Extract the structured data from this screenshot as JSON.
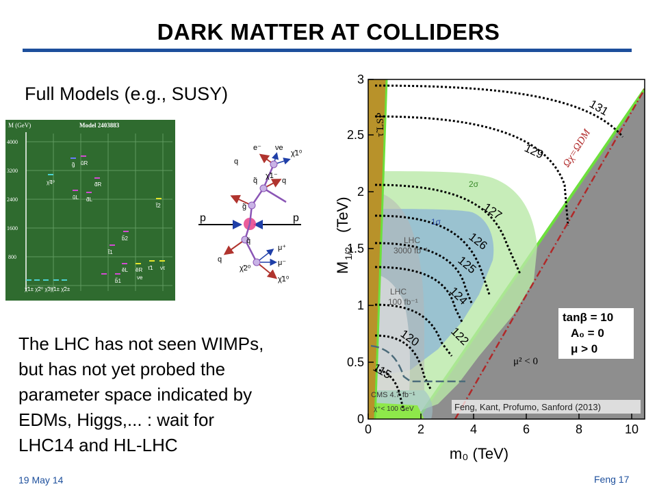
{
  "slide": {
    "title": "DARK MATTER AT COLLIDERS",
    "subtitle": "Full Models (e.g., SUSY)",
    "body_lines": [
      "The LHC has not seen WIMPs,",
      "but has not yet probed the",
      "parameter space indicated by",
      "EDMs, Higgs,... : wait for",
      "LHC14 and HL-LHC"
    ],
    "footer_date": "19 May 14",
    "footer_page": "Feng  17",
    "accent_color": "#1d4f9c"
  },
  "spectrum": {
    "axis_label": "M (GeV)",
    "model_label": "Model 2403883",
    "ticks": [
      "4000",
      "3200",
      "2400",
      "1600",
      "800"
    ],
    "particles": [
      "g̃",
      "ũR",
      "χ̃4⁰",
      "d̃R",
      "ũL",
      "d̃L",
      "t̃2",
      "b̃2",
      "t̃1",
      "b̃1",
      "ẽL",
      "ẽR",
      "τ̃1",
      "νe",
      "ντ"
    ],
    "bottom_labels": [
      "χ̃1± χ̃2⁰ χ̃3⁰",
      "χ̃1± χ̃2±"
    ]
  },
  "feynman": {
    "p_left": "p",
    "p_right": "p",
    "labels": [
      "e⁻",
      "νe",
      "χ̃1⁰",
      "q",
      "χ̃1⁻",
      "q̃",
      "q",
      "g̃",
      "q̃",
      "q",
      "μ⁺",
      "μ⁻",
      "χ̃2⁰",
      "χ̃1⁰"
    ]
  },
  "plot": {
    "credit": "Feng, Kant, Profumo, Sanford (2013)",
    "x_label": "m₀   (TeV)",
    "y_label_main": "M",
    "y_label_sub": "1/2",
    "y_label_unit": "(TeV)",
    "x_ticks": [
      "0",
      "2",
      "4",
      "6",
      "8",
      "10"
    ],
    "y_ticks": [
      "0",
      "0.5",
      "1",
      "1.5",
      "2",
      "2.5",
      "3"
    ],
    "region_stau": "τ̃ LSP",
    "region_relic": "Ωχ=ΩDM",
    "label_2sigma": "2σ",
    "label_1sigma": "1σ",
    "label_lhc3000": [
      "LHC",
      "3000 fb⁻¹"
    ],
    "label_lhc100": [
      "LHC",
      "100 fb⁻¹"
    ],
    "label_cms": "CMS 4.7 fb⁻¹",
    "label_chargino": "χ⁺< 100 GeV",
    "label_mu2": "μ² < 0",
    "higgs_contours": [
      "131",
      "129",
      "127",
      "126",
      "125",
      "124",
      "122",
      "120",
      "115"
    ],
    "legend": [
      "tanβ = 10",
      "A₀ = 0",
      "μ > 0"
    ]
  }
}
